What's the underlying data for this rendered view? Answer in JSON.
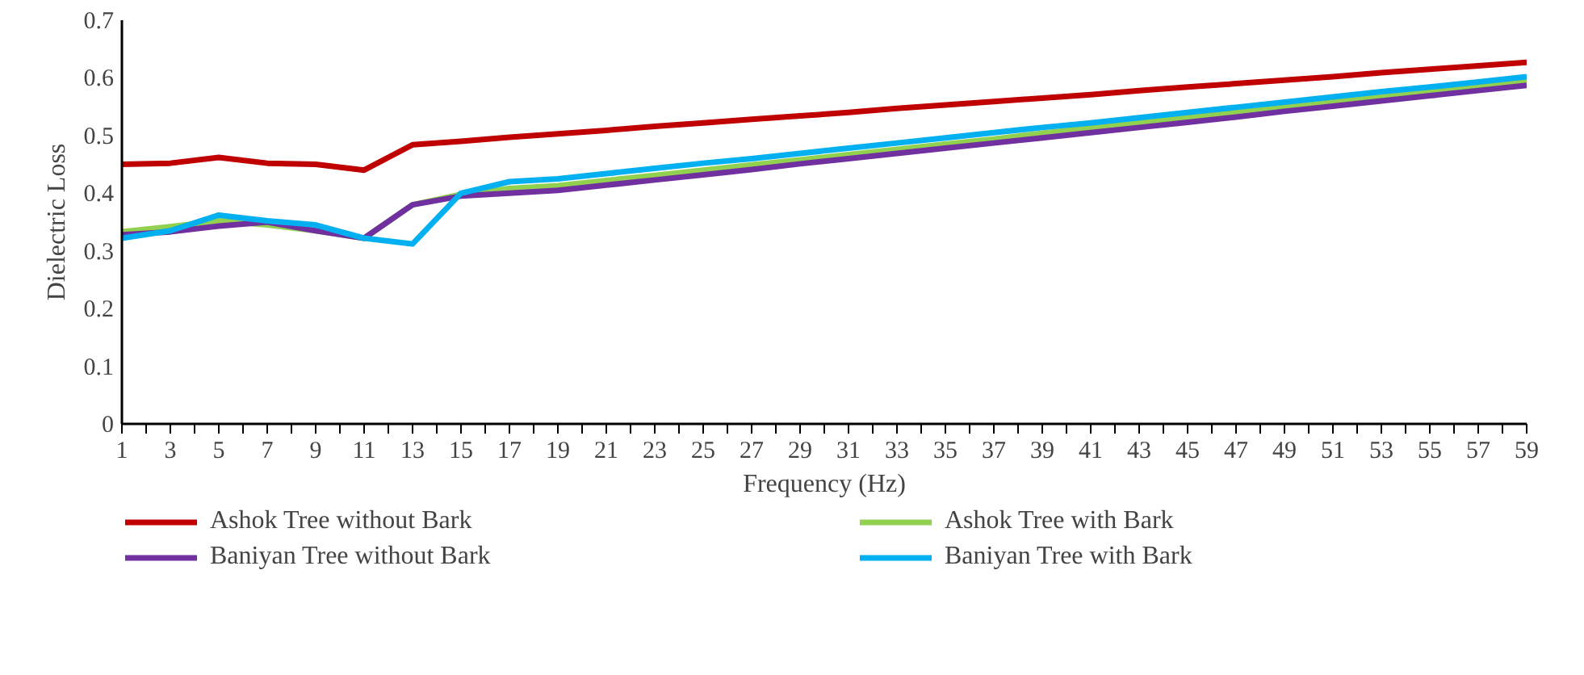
{
  "chart_data": {
    "type": "line",
    "xlabel": "Frequency (Hz)",
    "ylabel": "Dielectric Loss",
    "x": [
      1,
      3,
      5,
      7,
      9,
      11,
      13,
      15,
      17,
      19,
      21,
      23,
      25,
      27,
      29,
      31,
      33,
      35,
      37,
      39,
      41,
      43,
      45,
      47,
      49,
      51,
      53,
      55,
      57,
      59
    ],
    "xlim": [
      1,
      59
    ],
    "xticks": [
      1,
      {
        "value": 2,
        "label": null
      },
      3,
      {
        "value": 4,
        "label": null
      },
      5,
      {
        "value": 6,
        "label": null
      },
      7,
      {
        "value": 8,
        "label": null
      },
      9,
      {
        "value": 10,
        "label": null
      },
      11,
      {
        "value": 12,
        "label": null
      },
      13,
      {
        "value": 14,
        "label": null
      },
      15,
      {
        "value": 16,
        "label": null
      },
      17,
      {
        "value": 18,
        "label": null
      },
      19,
      {
        "value": 20,
        "label": null
      },
      21,
      {
        "value": 22,
        "label": null
      },
      23,
      {
        "value": 24,
        "label": null
      },
      25,
      {
        "value": 26,
        "label": null
      },
      27,
      {
        "value": 28,
        "label": null
      },
      29,
      {
        "value": 30,
        "label": null
      },
      31,
      {
        "value": 32,
        "label": null
      },
      33,
      {
        "value": 34,
        "label": null
      },
      35,
      {
        "value": 36,
        "label": null
      },
      37,
      {
        "value": 38,
        "label": null
      },
      39,
      {
        "value": 40,
        "label": null
      },
      41,
      {
        "value": 42,
        "label": null
      },
      43,
      {
        "value": 44,
        "label": null
      },
      45,
      {
        "value": 46,
        "label": null
      },
      47,
      {
        "value": 48,
        "label": null
      },
      49,
      {
        "value": 50,
        "label": null
      },
      51,
      {
        "value": 52,
        "label": null
      },
      53,
      {
        "value": 54,
        "label": null
      },
      55,
      {
        "value": 56,
        "label": null
      },
      57,
      {
        "value": 58,
        "label": null
      },
      59
    ],
    "ylim": [
      0,
      0.7
    ],
    "yticks": [
      0,
      0.1,
      0.2,
      0.3,
      0.4,
      0.5,
      0.6,
      0.7
    ],
    "grid": false,
    "legend": "bottom",
    "series": [
      {
        "name": "Ashok Tree without Bark",
        "color": "#c00000",
        "values": [
          0.45,
          0.452,
          0.462,
          0.452,
          0.45,
          0.44,
          0.484,
          0.49,
          0.497,
          0.503,
          0.509,
          0.516,
          0.522,
          0.528,
          0.534,
          0.54,
          0.547,
          0.553,
          0.559,
          0.565,
          0.571,
          0.578,
          0.584,
          0.59,
          0.596,
          0.602,
          0.609,
          0.615,
          0.621,
          0.627
        ]
      },
      {
        "name": "Ashok Tree with Bark",
        "color": "#92d050",
        "values": [
          0.333,
          0.342,
          0.352,
          0.345,
          0.335,
          0.322,
          0.38,
          0.398,
          0.408,
          0.413,
          0.422,
          0.431,
          0.44,
          0.449,
          0.458,
          0.467,
          0.476,
          0.485,
          0.494,
          0.504,
          0.513,
          0.522,
          0.531,
          0.54,
          0.549,
          0.558,
          0.567,
          0.576,
          0.585,
          0.594
        ]
      },
      {
        "name": "Baniyan Tree without Bark",
        "color": "#7030a0",
        "values": [
          0.328,
          0.333,
          0.343,
          0.35,
          0.335,
          0.322,
          0.38,
          0.395,
          0.4,
          0.405,
          0.414,
          0.423,
          0.432,
          0.441,
          0.451,
          0.46,
          0.469,
          0.478,
          0.487,
          0.496,
          0.505,
          0.514,
          0.523,
          0.532,
          0.542,
          0.551,
          0.56,
          0.569,
          0.578,
          0.587
        ]
      },
      {
        "name": "Baniyan Tree with Bark",
        "color": "#00b0f0",
        "values": [
          0.322,
          0.335,
          0.362,
          0.352,
          0.345,
          0.322,
          0.312,
          0.4,
          0.42,
          0.425,
          0.434,
          0.443,
          0.452,
          0.46,
          0.469,
          0.478,
          0.487,
          0.496,
          0.505,
          0.514,
          0.522,
          0.531,
          0.54,
          0.549,
          0.558,
          0.567,
          0.576,
          0.584,
          0.593,
          0.602
        ]
      }
    ]
  }
}
